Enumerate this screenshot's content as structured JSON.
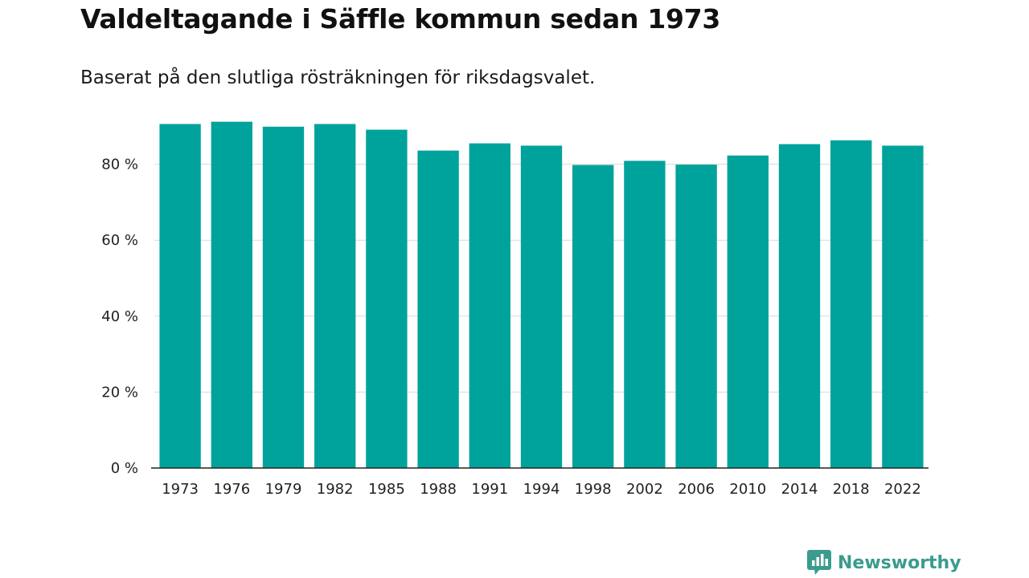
{
  "header": {
    "title": "Valdeltagande i Säffle kommun sedan 1973",
    "subtitle": "Baserat på den slutliga rösträkningen för riksdagsvalet."
  },
  "chart_data": {
    "type": "bar",
    "title": "Valdeltagande i Säffle kommun sedan 1973",
    "subtitle": "Baserat på den slutliga rösträkningen för riksdagsvalet.",
    "xlabel": "",
    "ylabel": "",
    "categories": [
      "1973",
      "1976",
      "1979",
      "1982",
      "1985",
      "1988",
      "1991",
      "1994",
      "1998",
      "2002",
      "2006",
      "2010",
      "2014",
      "2018",
      "2022"
    ],
    "series": [
      {
        "name": "Valdeltagande",
        "values": [
          90.6,
          91.2,
          89.9,
          90.6,
          89.1,
          83.6,
          85.5,
          84.9,
          79.8,
          80.9,
          79.9,
          82.3,
          85.3,
          86.3,
          84.9
        ],
        "color": "#00a39b"
      }
    ],
    "ylim": [
      0,
      100
    ],
    "yticks": [
      0,
      20,
      40,
      60,
      80
    ],
    "ytick_labels": [
      "0 %",
      "20 %",
      "40 %",
      "60 %",
      "80 %"
    ],
    "grid": true,
    "legend": "none"
  },
  "brand": {
    "name": "Newsworthy",
    "icon": "newsworthy-logo-icon",
    "color": "#3a9b8e"
  }
}
